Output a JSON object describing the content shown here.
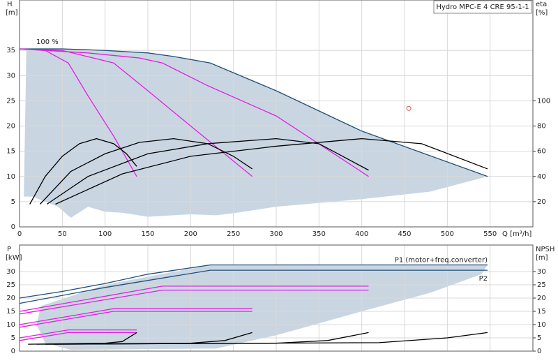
{
  "chart_data": [
    {
      "type": "line",
      "title": "Hydro MPC-E 4 CRE 95-1-1",
      "xlabel": "Q [m³/h]",
      "ylabel": "H",
      "yunit": "[m]",
      "y2label": "eta",
      "y2unit": "[%]",
      "xlim": [
        0,
        600
      ],
      "xticks": [
        0,
        50,
        100,
        150,
        200,
        250,
        300,
        350,
        400,
        450,
        500,
        550
      ],
      "show_xtick_labels": true,
      "ylim": [
        0,
        45
      ],
      "yticks": [
        0,
        5,
        10,
        15,
        20,
        25,
        30,
        35
      ],
      "y2lim": [
        0,
        180
      ],
      "y2ticks": [
        20,
        40,
        60,
        80,
        100
      ],
      "grid": true,
      "annotations": [
        "100 %"
      ],
      "region": {
        "color": "#c9d6e2",
        "x": [
          8,
          50,
          100,
          150,
          180,
          223,
          300,
          400,
          547,
          480,
          400,
          300,
          250,
          230,
          200,
          150,
          120,
          100,
          80,
          60,
          45,
          30,
          15,
          5
        ],
        "y": [
          35.3,
          35.3,
          35,
          34.5,
          33.8,
          32.5,
          27,
          19,
          10,
          7,
          5.5,
          4,
          2.7,
          2.3,
          2.5,
          2,
          2.8,
          3,
          4,
          1.8,
          4,
          5,
          6,
          6
        ]
      },
      "series": [
        {
          "color": "#1f4e79",
          "x": [
            0,
            50,
            100,
            150,
            180,
            223,
            300,
            400,
            547
          ],
          "values": [
            35.3,
            35.3,
            35,
            34.5,
            33.8,
            32.5,
            27,
            19,
            10
          ]
        },
        {
          "color": "#e020e0",
          "x": [
            0,
            30,
            57,
            80,
            110,
            137
          ],
          "values": [
            35.3,
            35,
            32.5,
            26,
            18,
            10
          ]
        },
        {
          "color": "#e020e0",
          "x": [
            0,
            50,
            110,
            150,
            200,
            272
          ],
          "values": [
            35.3,
            35,
            32.5,
            27,
            20,
            10
          ]
        },
        {
          "color": "#e020e0",
          "x": [
            0,
            80,
            140,
            167,
            220,
            300,
            408
          ],
          "values": [
            35.3,
            34.5,
            33.5,
            32.5,
            28,
            22,
            10
          ]
        },
        {
          "color": "#000000",
          "axis": "y2",
          "x": [
            12,
            30,
            50,
            70,
            90,
            110,
            125,
            137
          ],
          "values": [
            18,
            40,
            56,
            66,
            70,
            66,
            58,
            48
          ]
        },
        {
          "color": "#000000",
          "axis": "y2",
          "x": [
            24,
            60,
            100,
            140,
            180,
            220,
            250,
            272
          ],
          "values": [
            18,
            44,
            58,
            67,
            70,
            66,
            56,
            46
          ]
        },
        {
          "color": "#000000",
          "axis": "y2",
          "x": [
            32,
            80,
            150,
            220,
            300,
            350,
            408
          ],
          "values": [
            18,
            40,
            58,
            66,
            70,
            66,
            45
          ]
        },
        {
          "color": "#000000",
          "axis": "y2",
          "x": [
            42,
            120,
            200,
            300,
            400,
            470,
            547
          ],
          "values": [
            18,
            42,
            56,
            64,
            70,
            66,
            46
          ]
        }
      ],
      "points": [
        {
          "x": 455,
          "y": 23.5,
          "color": "#e05050"
        }
      ]
    },
    {
      "type": "line",
      "ylabel": "P",
      "yunit": "[kW]",
      "y2label": "NPSH",
      "y2unit": "[m]",
      "xlim": [
        0,
        600
      ],
      "xticks": [
        0,
        50,
        100,
        150,
        200,
        250,
        300,
        350,
        400,
        450,
        500,
        550
      ],
      "show_xtick_labels": false,
      "ylim": [
        0,
        40
      ],
      "yticks": [
        0,
        5,
        10,
        15,
        20,
        25,
        30
      ],
      "y2lim": [
        0,
        40
      ],
      "y2ticks": [
        0,
        5,
        10,
        15,
        20,
        25,
        30
      ],
      "grid": true,
      "region": {
        "color": "#c9d6e2",
        "x": [
          25,
          100,
          223,
          547,
          540,
          480,
          400,
          300,
          230,
          60,
          30,
          20
        ],
        "y": [
          17,
          25,
          32.5,
          32.5,
          29,
          22,
          15,
          6,
          1,
          0.5,
          3,
          10
        ]
      },
      "series": [
        {
          "name": "P1 (motor+freq.converter)",
          "color": "#1f4e79",
          "x": [
            0,
            50,
            100,
            150,
            223,
            547
          ],
          "values": [
            20,
            22.5,
            25.5,
            29,
            32.5,
            32.5
          ]
        },
        {
          "name": "P2",
          "color": "#1f4e79",
          "x": [
            0,
            100,
            223,
            547
          ],
          "values": [
            18,
            24,
            30.5,
            30.5
          ]
        },
        {
          "color": "#e020e0",
          "x": [
            0,
            57,
            137
          ],
          "values": [
            5,
            8,
            8
          ]
        },
        {
          "color": "#e020e0",
          "x": [
            0,
            57,
            137
          ],
          "values": [
            4,
            7,
            7
          ]
        },
        {
          "color": "#e020e0",
          "x": [
            0,
            110,
            272
          ],
          "values": [
            10,
            16,
            16
          ]
        },
        {
          "color": "#e020e0",
          "x": [
            0,
            110,
            272
          ],
          "values": [
            9,
            15,
            15
          ]
        },
        {
          "color": "#e020e0",
          "x": [
            0,
            167,
            408
          ],
          "values": [
            15,
            24.5,
            24.5
          ]
        },
        {
          "color": "#e020e0",
          "x": [
            0,
            167,
            408
          ],
          "values": [
            14,
            23,
            23
          ]
        },
        {
          "color": "#000000",
          "axis": "y2",
          "x": [
            10,
            100,
            120,
            137
          ],
          "values": [
            2.6,
            3,
            3.6,
            7
          ]
        },
        {
          "color": "#000000",
          "axis": "y2",
          "x": [
            20,
            200,
            240,
            272
          ],
          "values": [
            2.6,
            3,
            4,
            7
          ]
        },
        {
          "color": "#000000",
          "axis": "y2",
          "x": [
            30,
            300,
            360,
            408
          ],
          "values": [
            2.6,
            3,
            4,
            7
          ]
        },
        {
          "color": "#000000",
          "axis": "y2",
          "x": [
            40,
            420,
            500,
            547
          ],
          "values": [
            2.6,
            3.2,
            5,
            7
          ]
        }
      ]
    }
  ]
}
